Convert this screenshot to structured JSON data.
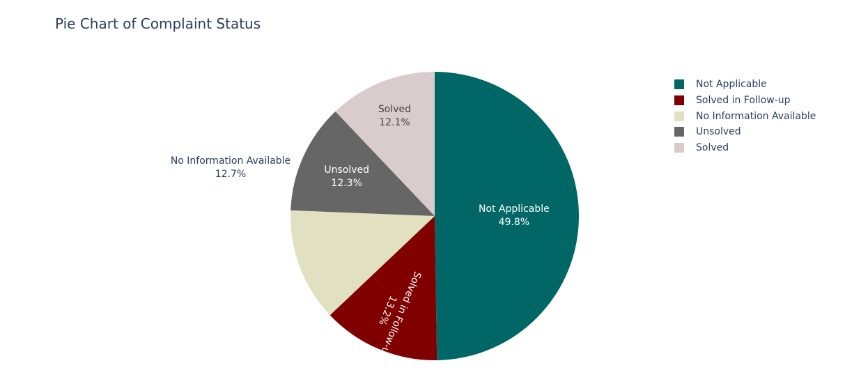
{
  "title": "Pie Chart of Complaint Status",
  "chart_data": {
    "type": "pie",
    "title": "Pie Chart of Complaint Status",
    "labels": [
      "Not Applicable",
      "Solved in Follow-up",
      "No Information Available",
      "Unsolved",
      "Solved"
    ],
    "values": [
      49.8,
      13.2,
      12.7,
      12.3,
      12.1
    ],
    "percent_labels": [
      "49.8%",
      "13.2%",
      "12.7%",
      "12.3%",
      "12.1%"
    ],
    "colors": [
      "#006666",
      "#800000",
      "#e1e1c1",
      "#666666",
      "#d9cccc"
    ],
    "legend_position": "top-right",
    "direction": "clockwise"
  },
  "legend": {
    "items": [
      {
        "label": "Not Applicable",
        "color": "#006666"
      },
      {
        "label": "Solved in Follow-up",
        "color": "#800000"
      },
      {
        "label": "No Information Available",
        "color": "#e1e1c1"
      },
      {
        "label": "Unsolved",
        "color": "#666666"
      },
      {
        "label": "Solved",
        "color": "#d9cccc"
      }
    ]
  }
}
